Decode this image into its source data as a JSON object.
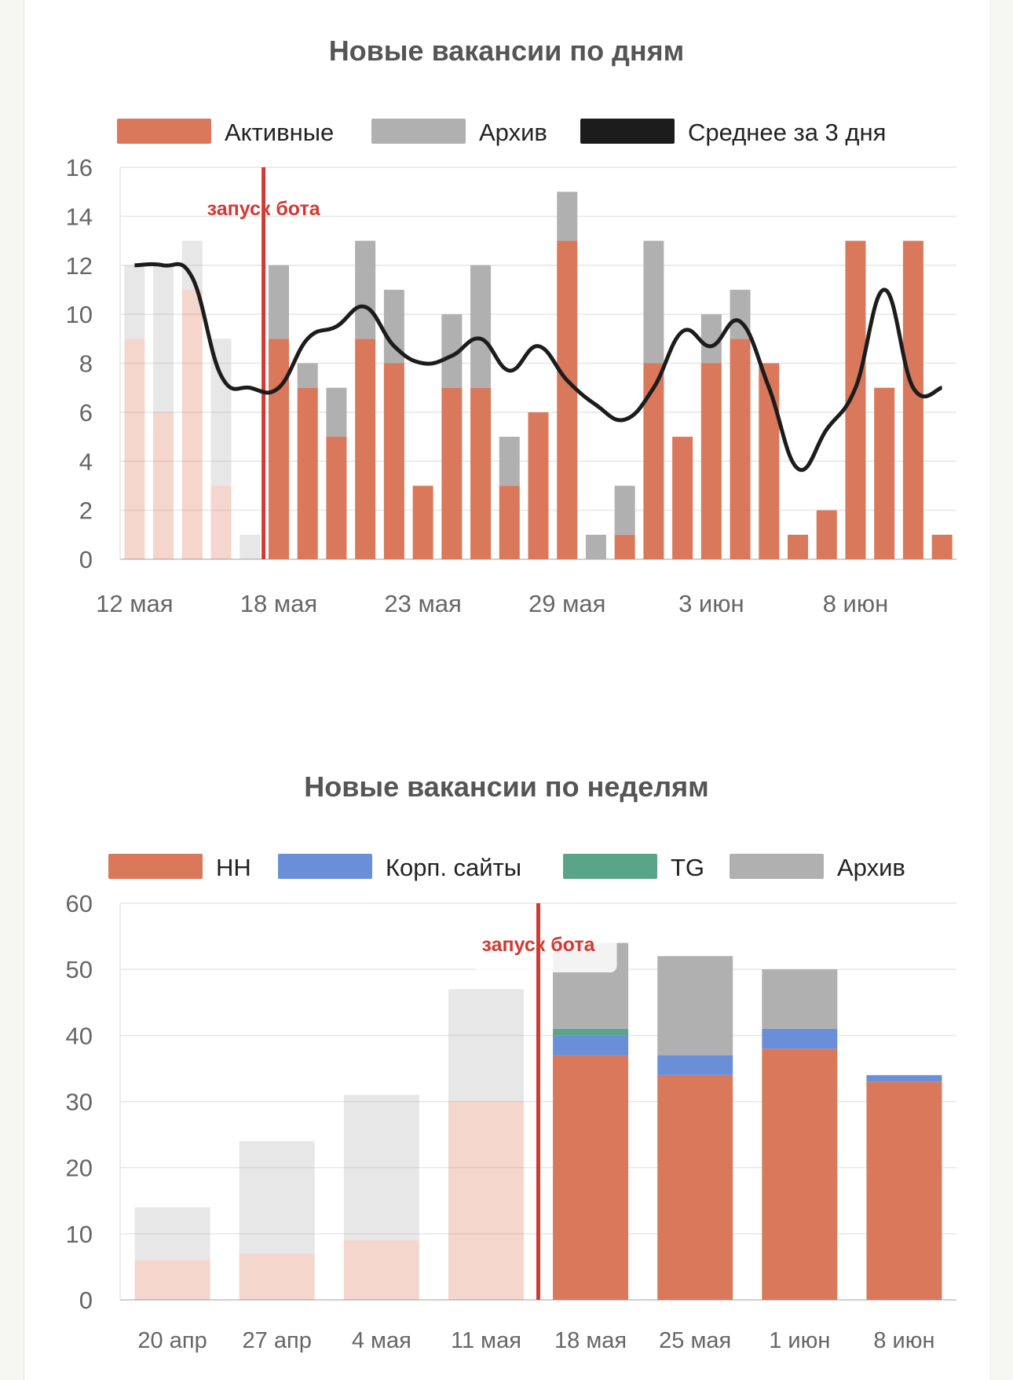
{
  "colors": {
    "active": "#d9785a",
    "archive": "#b0b0b0",
    "avg": "#1c1c1c",
    "corp": "#6a8fd8",
    "tg": "#5aa58a",
    "launch": "#d13a34",
    "grid": "#e6e6e6"
  },
  "chart_data": [
    {
      "type": "bar",
      "title": "Новые вакансии по дням",
      "stacked": true,
      "legend": [
        "Активные",
        "Архив",
        "Среднее за 3 дня"
      ],
      "x_tick_labels": [
        "12 мая",
        "18 мая",
        "23 мая",
        "29 мая",
        "3 июн",
        "8 июн"
      ],
      "x_tick_indices": [
        0,
        5,
        10,
        15,
        20,
        25
      ],
      "ylim": [
        0,
        16
      ],
      "y_ticks": [
        0,
        2,
        4,
        6,
        8,
        10,
        12,
        14,
        16
      ],
      "pre_launch_count": 5,
      "launch_after_index": 4,
      "launch_label": "запуск бота",
      "series": [
        {
          "name": "Активные",
          "values": [
            9,
            6,
            11,
            3,
            0,
            9,
            7,
            5,
            9,
            8,
            3,
            7,
            7,
            3,
            6,
            13,
            0,
            1,
            8,
            5,
            8,
            9,
            8,
            1,
            2,
            13,
            7,
            13,
            1
          ]
        },
        {
          "name": "Архив",
          "values": [
            3,
            6,
            2,
            6,
            1,
            3,
            1,
            2,
            4,
            3,
            0,
            3,
            5,
            2,
            0,
            2,
            1,
            2,
            5,
            0,
            2,
            2,
            0,
            0,
            0,
            0,
            0,
            0,
            0
          ]
        },
        {
          "name": "Среднее за 3 дня",
          "type": "line",
          "values": [
            12,
            12,
            11.5,
            7.5,
            7,
            7,
            9,
            9.5,
            10.3,
            8.7,
            8,
            8.3,
            9,
            7.7,
            8.7,
            7.3,
            6.3,
            5.7,
            7,
            9.3,
            8.7,
            9.7,
            7,
            3.7,
            5.3,
            7,
            11,
            7,
            7
          ]
        }
      ]
    },
    {
      "type": "bar",
      "title": "Новые вакансии по неделям",
      "stacked": true,
      "categories": [
        "20 апр",
        "27 апр",
        "4 мая",
        "11 мая",
        "18 мая",
        "25 мая",
        "1 июн",
        "8 июн"
      ],
      "legend": [
        "HH",
        "Корп. сайты",
        "TG",
        "Архив"
      ],
      "ylim": [
        0,
        60
      ],
      "y_ticks": [
        0,
        10,
        20,
        30,
        40,
        50,
        60
      ],
      "pre_launch_count": 4,
      "launch_after_index": 3,
      "launch_label": "запуск бота",
      "series": [
        {
          "name": "HH",
          "values": [
            6,
            7,
            9,
            30,
            37,
            34,
            38,
            33
          ]
        },
        {
          "name": "Корп. сайты",
          "values": [
            0,
            0,
            0,
            0,
            3,
            3,
            3,
            1
          ]
        },
        {
          "name": "TG",
          "values": [
            0,
            0,
            0,
            0,
            1,
            0,
            0,
            0
          ]
        },
        {
          "name": "Архив",
          "values": [
            8,
            17,
            22,
            17,
            13,
            15,
            9,
            0
          ]
        }
      ]
    }
  ]
}
